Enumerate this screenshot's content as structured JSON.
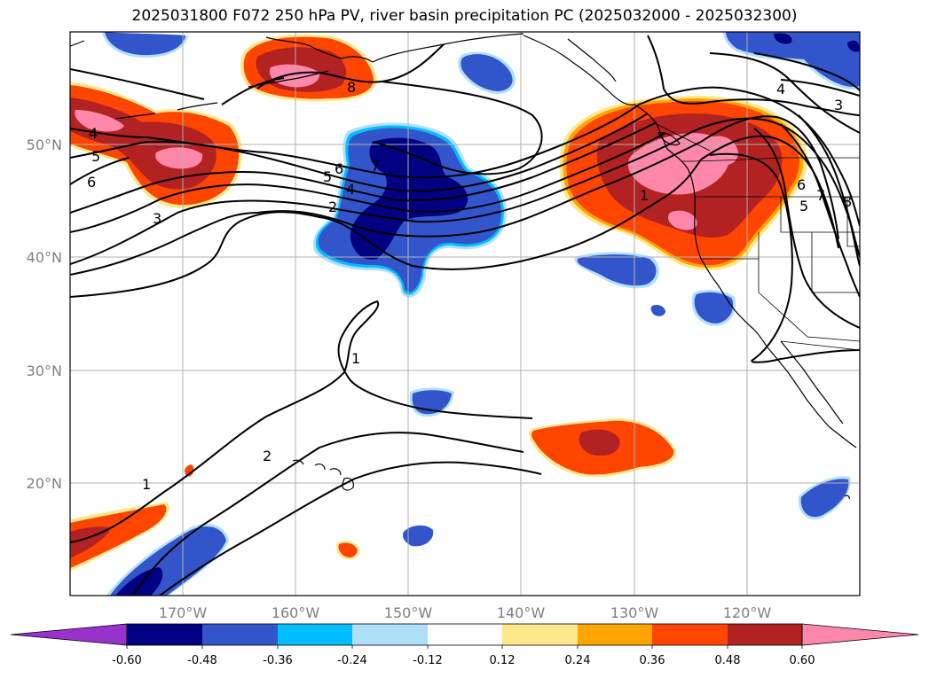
{
  "title": "2025031800 F072 250 hPa PV, river basin precipitation PC (2025032000 - 2025032300)",
  "map": {
    "lon_range": [
      -180,
      -110
    ],
    "lat_range": [
      10,
      60
    ],
    "lon_ticks": [
      {
        "lon": -170,
        "label": "170°W"
      },
      {
        "lon": -160,
        "label": "160°W"
      },
      {
        "lon": -150,
        "label": "150°W"
      },
      {
        "lon": -140,
        "label": "140°W"
      },
      {
        "lon": -130,
        "label": "130°W"
      },
      {
        "lon": -120,
        "label": "120°W"
      }
    ],
    "lat_ticks": [
      {
        "lat": 20,
        "label": "20°N"
      },
      {
        "lat": 30,
        "label": "30°N"
      },
      {
        "lat": 40,
        "label": "40°N"
      },
      {
        "lat": 50,
        "label": "50°N"
      }
    ],
    "gridlines": true,
    "field_name": "river basin precipitation PC",
    "contour_field": "250 hPa PV"
  },
  "colorbar": {
    "levels": [
      "-0.60",
      "-0.48",
      "-0.36",
      "-0.24",
      "-0.12",
      "0.12",
      "0.24",
      "0.36",
      "0.48",
      "0.60"
    ],
    "colors": [
      "#9932cc",
      "#000080",
      "#3355cc",
      "#00bfff",
      "#b0e0f8",
      "#ffffff",
      "#ffe88c",
      "#ffa500",
      "#ff4500",
      "#b22222",
      "#ff88aa"
    ],
    "extend": "both"
  },
  "pv_labels": [
    {
      "text": "4",
      "lon": -178.0,
      "lat": 51.5
    },
    {
      "text": "5",
      "lon": -177.5,
      "lat": 49.3
    },
    {
      "text": "6",
      "lon": -177.8,
      "lat": 47.0
    },
    {
      "text": "3",
      "lon": -170.2,
      "lat": 43.3
    },
    {
      "text": "8",
      "lon": -156.5,
      "lat": 55.7
    },
    {
      "text": "6",
      "lon": -156.0,
      "lat": 48.2
    },
    {
      "text": "7",
      "lon": -154.3,
      "lat": 48.4
    },
    {
      "text": "5",
      "lon": -157.0,
      "lat": 47.5
    },
    {
      "text": "4",
      "lon": -155.8,
      "lat": 46.3
    },
    {
      "text": "2",
      "lon": -156.8,
      "lat": 45.0
    },
    {
      "text": "1",
      "lon": -130.0,
      "lat": 45.8
    },
    {
      "text": "4",
      "lon": -115.0,
      "lat": 56.0
    },
    {
      "text": "3",
      "lon": -111.8,
      "lat": 54.8
    },
    {
      "text": "6",
      "lon": -114.8,
      "lat": 46.5
    },
    {
      "text": "7",
      "lon": -113.3,
      "lat": 46.0
    },
    {
      "text": "8",
      "lon": -110.8,
      "lat": 45.3
    },
    {
      "text": "5",
      "lon": -114.2,
      "lat": 45.0
    },
    {
      "text": "1",
      "lon": -153.8,
      "lat": 31.2
    },
    {
      "text": "2",
      "lon": -162.5,
      "lat": 22.4
    },
    {
      "text": "1",
      "lon": -173.0,
      "lat": 19.8
    }
  ]
}
